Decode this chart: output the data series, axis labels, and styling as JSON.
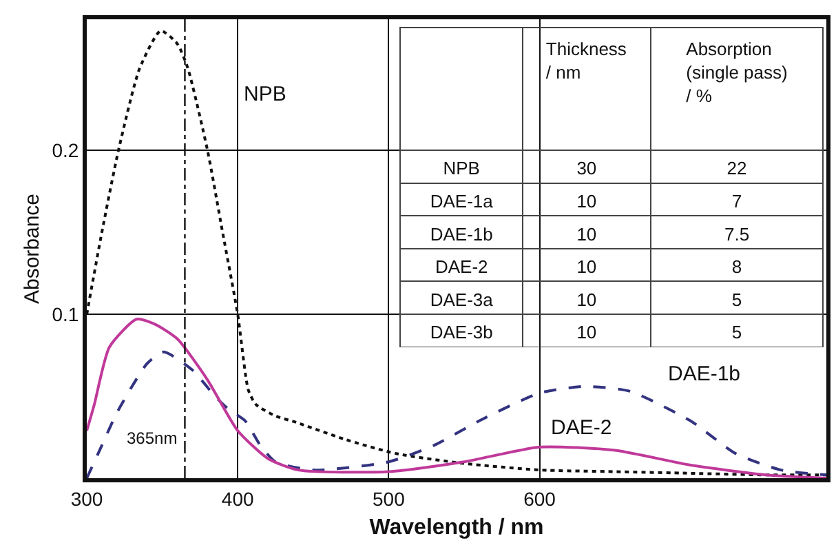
{
  "chart_data": {
    "type": "line",
    "xlabel": "Wavelength / nm",
    "ylabel": "Absorbance",
    "xlim": [
      300,
      790
    ],
    "ylim": [
      0,
      0.28
    ],
    "xticks": [
      300,
      400,
      500,
      600
    ],
    "yticks": [
      0.1,
      0.2
    ],
    "grid": true,
    "legend": false,
    "marker": "none",
    "series": [
      {
        "name": "NPB",
        "color": "#111111",
        "line_style": "dotted",
        "x": [
          300,
          310,
          321,
          335,
          349,
          360,
          367,
          380,
          390,
          400,
          407,
          412,
          425,
          439,
          470,
          505,
          550,
          600,
          650,
          700,
          750,
          790
        ],
        "values": [
          0.1,
          0.15,
          0.2,
          0.25,
          0.273,
          0.265,
          0.25,
          0.2,
          0.15,
          0.1,
          0.054,
          0.045,
          0.038,
          0.034,
          0.024,
          0.015,
          0.009,
          0.005,
          0.004,
          0.003,
          0.002,
          0.002
        ]
      },
      {
        "name": "DAE-1b",
        "color": "#333380",
        "line_style": "dashed",
        "x": [
          300,
          310,
          320,
          340,
          351,
          370,
          385,
          394,
          405,
          415,
          425,
          450,
          500,
          530,
          560,
          600,
          630,
          660,
          700,
          730,
          760,
          790
        ],
        "values": [
          0,
          0.02,
          0.04,
          0.07,
          0.077,
          0.066,
          0.05,
          0.042,
          0.035,
          0.02,
          0.01,
          0.005,
          0.01,
          0.02,
          0.035,
          0.052,
          0.056,
          0.053,
          0.035,
          0.015,
          0.005,
          0.002
        ]
      },
      {
        "name": "DAE-2",
        "color": "#c0399a",
        "line_style": "solid",
        "x": [
          300,
          305,
          315,
          333,
          345,
          360,
          380,
          400,
          420,
          440,
          500,
          550,
          600,
          650,
          700,
          750,
          790
        ],
        "values": [
          0.029,
          0.045,
          0.08,
          0.097,
          0.094,
          0.085,
          0.06,
          0.029,
          0.012,
          0.005,
          0.004,
          0.01,
          0.019,
          0.017,
          0.008,
          0.002,
          0
        ]
      }
    ],
    "ref_lines": [
      {
        "axis": "x",
        "value": 365,
        "label": "365nm",
        "color": "#111111",
        "line_style": "dashdot"
      }
    ],
    "annotations": [
      "Thickness\n/ nm",
      "Absorption\n(single pass)\n/ %",
      "NPB",
      "30",
      "22",
      "DAE-1a",
      "10",
      "7",
      "DAE-1b",
      "10",
      "7.5",
      "DAE-2",
      "10",
      "8",
      "DAE-3a",
      "10",
      "5",
      "DAE-3b",
      "10",
      "5"
    ]
  }
}
